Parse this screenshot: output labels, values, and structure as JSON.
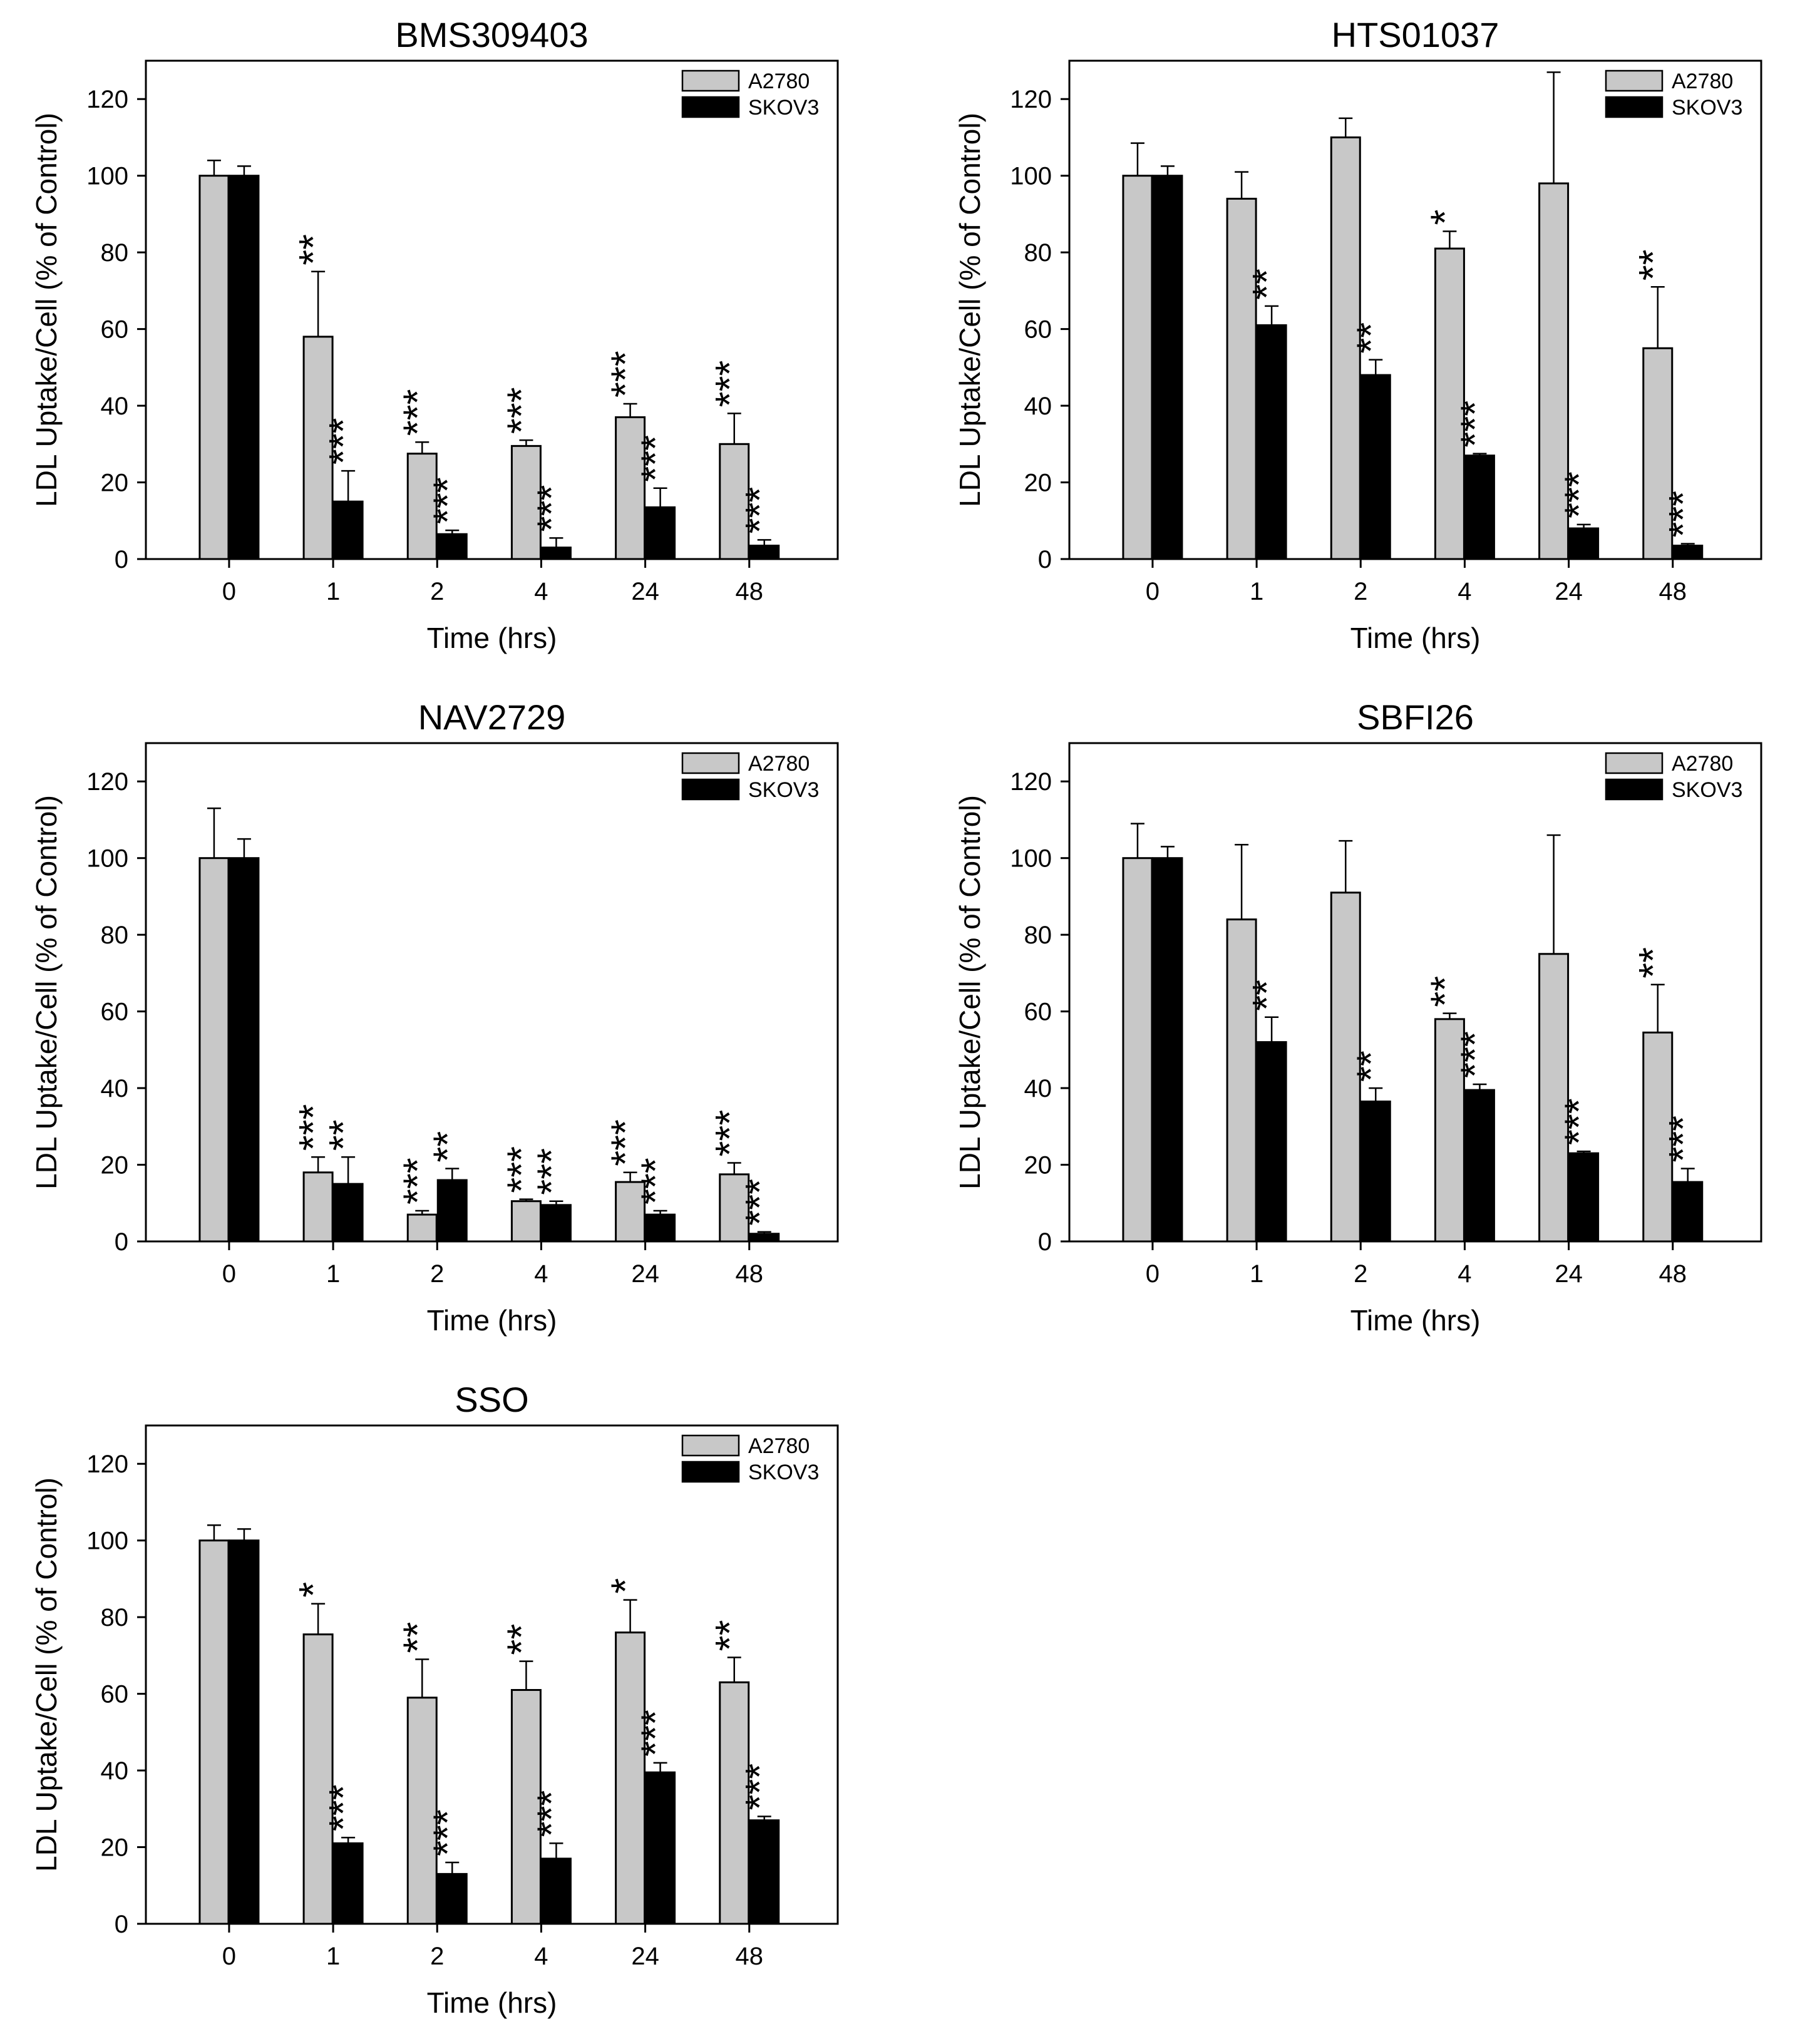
{
  "figure": {
    "background": "#ffffff"
  },
  "colors": {
    "A2780": "#c8c8c8",
    "SKOV3": "#000000",
    "axis": "#000000"
  },
  "chart_data": [
    {
      "type": "bar",
      "title": "BMS309403",
      "xlabel": "Time (hrs)",
      "ylabel": "LDL Uptake/Cell (% of Control)",
      "ylim": [
        0,
        130
      ],
      "yticks": [
        0,
        20,
        40,
        60,
        80,
        100,
        120
      ],
      "categories": [
        "0",
        "1",
        "2",
        "4",
        "24",
        "48"
      ],
      "legend": "top-right",
      "series": [
        {
          "name": "A2780",
          "values": [
            100,
            58,
            27.5,
            29.5,
            37,
            30
          ],
          "errors": [
            4,
            17,
            3,
            1.5,
            3.5,
            8
          ],
          "stars": [
            "",
            "**",
            "***",
            "***",
            "***",
            "***"
          ]
        },
        {
          "name": "SKOV3",
          "values": [
            100,
            15,
            6.5,
            3,
            13.5,
            3.5
          ],
          "errors": [
            2.5,
            8,
            1,
            2.5,
            5,
            1.5
          ],
          "stars": [
            "",
            "***",
            "***",
            "***",
            "***",
            "***"
          ]
        }
      ]
    },
    {
      "type": "bar",
      "title": "HTS01037",
      "xlabel": "Time (hrs)",
      "ylabel": "LDL Uptake/Cell (% of Control)",
      "ylim": [
        0,
        130
      ],
      "yticks": [
        0,
        20,
        40,
        60,
        80,
        100,
        120
      ],
      "categories": [
        "0",
        "1",
        "2",
        "4",
        "24",
        "48"
      ],
      "legend": "top-right",
      "series": [
        {
          "name": "A2780",
          "values": [
            100,
            94,
            110,
            81,
            98,
            55
          ],
          "errors": [
            8.5,
            7,
            5,
            4.5,
            29,
            16
          ],
          "stars": [
            "",
            "",
            "",
            "*",
            "",
            "**"
          ]
        },
        {
          "name": "SKOV3",
          "values": [
            100,
            61,
            48,
            27,
            8,
            3.5
          ],
          "errors": [
            2.5,
            5,
            4,
            0.5,
            1,
            0.5
          ],
          "stars": [
            "",
            "**",
            "**",
            "***",
            "***",
            "***"
          ]
        }
      ]
    },
    {
      "type": "bar",
      "title": "NAV2729",
      "xlabel": "Time (hrs)",
      "ylabel": "LDL Uptake/Cell (% of Control)",
      "ylim": [
        0,
        130
      ],
      "yticks": [
        0,
        20,
        40,
        60,
        80,
        100,
        120
      ],
      "categories": [
        "0",
        "1",
        "2",
        "4",
        "24",
        "48"
      ],
      "legend": "top-right",
      "series": [
        {
          "name": "A2780",
          "values": [
            100,
            18,
            7,
            10.5,
            15.5,
            17.5
          ],
          "errors": [
            13,
            4,
            1,
            0.5,
            2.5,
            3
          ],
          "stars": [
            "",
            "***",
            "***",
            "***",
            "***",
            "***"
          ]
        },
        {
          "name": "SKOV3",
          "values": [
            100,
            15,
            16,
            9.5,
            7,
            2
          ],
          "errors": [
            5,
            7,
            3,
            1,
            1,
            0.5
          ],
          "stars": [
            "",
            "**",
            "**",
            "***",
            "***",
            "***"
          ]
        }
      ]
    },
    {
      "type": "bar",
      "title": "SBFI26",
      "xlabel": "Time (hrs)",
      "ylabel": "LDL Uptake/Cell (% of Control)",
      "ylim": [
        0,
        130
      ],
      "yticks": [
        0,
        20,
        40,
        60,
        80,
        100,
        120
      ],
      "categories": [
        "0",
        "1",
        "2",
        "4",
        "24",
        "48"
      ],
      "legend": "top-right",
      "series": [
        {
          "name": "A2780",
          "values": [
            100,
            84,
            91,
            58,
            75,
            54.5
          ],
          "errors": [
            9,
            19.5,
            13.5,
            1.5,
            31,
            12.5
          ],
          "stars": [
            "",
            "",
            "",
            "**",
            "",
            "**"
          ]
        },
        {
          "name": "SKOV3",
          "values": [
            100,
            52,
            36.5,
            39.5,
            23,
            15.5
          ],
          "errors": [
            3,
            6.5,
            3.5,
            1.5,
            0.5,
            3.5
          ],
          "stars": [
            "",
            "**",
            "**",
            "***",
            "***",
            "***"
          ]
        }
      ]
    },
    {
      "type": "bar",
      "title": "SSO",
      "xlabel": "Time (hrs)",
      "ylabel": "LDL Uptake/Cell (% of Control)",
      "ylim": [
        0,
        130
      ],
      "yticks": [
        0,
        20,
        40,
        60,
        80,
        100,
        120
      ],
      "categories": [
        "0",
        "1",
        "2",
        "4",
        "24",
        "48"
      ],
      "legend": "top-right",
      "series": [
        {
          "name": "A2780",
          "values": [
            100,
            75.5,
            59,
            61,
            76,
            63
          ],
          "errors": [
            4,
            8,
            10,
            7.5,
            8.5,
            6.5
          ],
          "stars": [
            "",
            "*",
            "**",
            "**",
            "*",
            "**"
          ]
        },
        {
          "name": "SKOV3",
          "values": [
            100,
            21,
            13,
            17,
            39.5,
            27
          ],
          "errors": [
            3,
            1.5,
            3,
            4,
            2.5,
            1
          ],
          "stars": [
            "",
            "***",
            "***",
            "***",
            "***",
            "***"
          ]
        }
      ]
    }
  ]
}
